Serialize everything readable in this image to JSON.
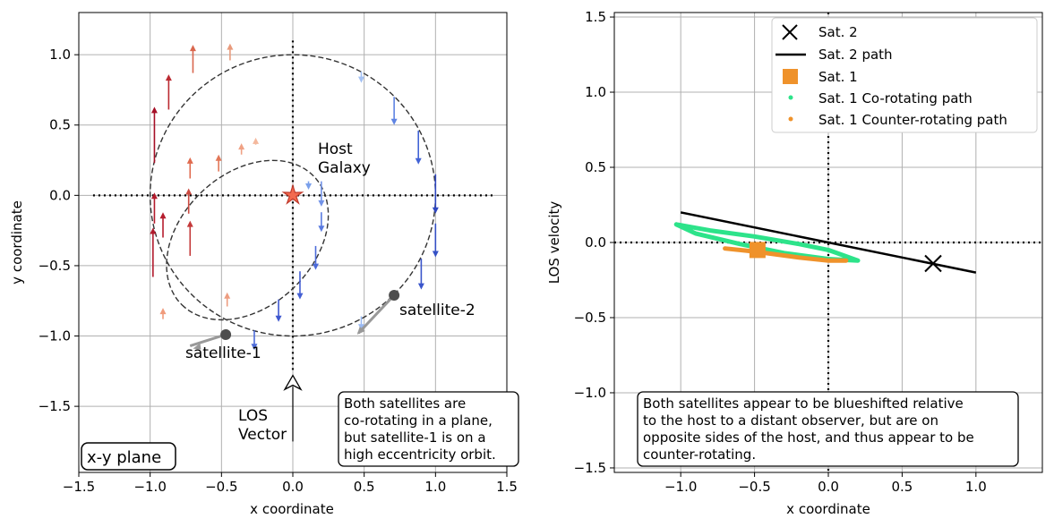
{
  "chart_data": [
    {
      "type": "line",
      "panel": "left",
      "title": "",
      "xlabel": "x coordinate",
      "ylabel": "y coordinate",
      "xlim": [
        -1.5,
        1.5
      ],
      "ylim": [
        -1.97,
        1.3
      ],
      "xticks": [
        -1.5,
        -1.0,
        -0.5,
        0.0,
        0.5,
        1.0,
        1.5
      ],
      "yticks": [
        -1.5,
        -1.0,
        -0.5,
        0.0,
        0.5,
        1.0
      ],
      "xtick_labels": [
        "−1.5",
        "−1.0",
        "−0.5",
        "0.0",
        "0.5",
        "1.0",
        "1.5"
      ],
      "ytick_labels": [
        "−1.5",
        "−1.0",
        "−0.5",
        "0.0",
        "0.5",
        "1.0"
      ],
      "grid": true,
      "panel_label": "x-y plane",
      "annotations": {
        "host_line1": "Host",
        "host_line2": "Galaxy",
        "sat1": "satellite-1",
        "sat2": "satellite-2",
        "los_line1": "LOS",
        "los_line2": "Vector",
        "box_lines": [
          "Both satellites are",
          "co-rotating in a plane,",
          "but satellite-1 is on a",
          "high eccentricity orbit."
        ]
      },
      "host_position": [
        0.0,
        0.0
      ],
      "orbits": [
        {
          "name": "Sat. 2 orbit",
          "center": [
            0.0,
            0.0
          ],
          "radius": 1.0
        },
        {
          "name": "Sat. 1 orbit",
          "focus": [
            0.0,
            0.0
          ],
          "pericenter": 0.2,
          "apocenter": 1.1,
          "apocenter_direction": [
            -0.7,
            -0.7
          ]
        }
      ],
      "satellites": [
        {
          "name": "satellite-1",
          "x": -0.47,
          "y": -0.99
        },
        {
          "name": "satellite-2",
          "x": 0.71,
          "y": -0.71
        }
      ],
      "velocity_arrows": [
        {
          "x": -0.44,
          "y": 0.96,
          "vy": 0.12,
          "color": "#e89a7c"
        },
        {
          "x": -0.7,
          "y": 0.87,
          "vy": 0.2,
          "color": "#d9674e"
        },
        {
          "x": -0.87,
          "y": 0.61,
          "vy": 0.25,
          "color": "#bb2a32"
        },
        {
          "x": -0.97,
          "y": 0.23,
          "vy": 0.4,
          "color": "#a50f26"
        },
        {
          "x": -0.97,
          "y": -0.2,
          "vy": 0.22,
          "color": "#b31b2c"
        },
        {
          "x": -0.98,
          "y": -0.58,
          "vy": 0.35,
          "color": "#b11a2c"
        },
        {
          "x": -0.91,
          "y": -0.88,
          "vy": 0.08,
          "color": "#f09b7c"
        },
        {
          "x": -0.72,
          "y": -0.43,
          "vy": 0.25,
          "color": "#c4393a"
        },
        {
          "x": -0.91,
          "y": -0.3,
          "vy": 0.18,
          "color": "#b51d2e"
        },
        {
          "x": -0.73,
          "y": -0.13,
          "vy": 0.18,
          "color": "#cb4a40"
        },
        {
          "x": -0.72,
          "y": 0.12,
          "vy": 0.15,
          "color": "#e06b4f"
        },
        {
          "x": -0.52,
          "y": 0.17,
          "vy": 0.12,
          "color": "#e27758"
        },
        {
          "x": -0.36,
          "y": 0.29,
          "vy": 0.08,
          "color": "#f0a184"
        },
        {
          "x": -0.26,
          "y": 0.36,
          "vy": 0.05,
          "color": "#f4b89d"
        },
        {
          "x": -0.46,
          "y": -0.79,
          "vy": 0.1,
          "color": "#ed9d80"
        },
        {
          "x": -0.27,
          "y": -0.96,
          "vy": -0.14,
          "color": "#4d6bd9"
        },
        {
          "x": -0.1,
          "y": -0.74,
          "vy": -0.16,
          "color": "#3f58cf"
        },
        {
          "x": 0.05,
          "y": -0.54,
          "vy": -0.2,
          "color": "#445fd3"
        },
        {
          "x": 0.16,
          "y": -0.36,
          "vy": -0.17,
          "color": "#4d6bd9"
        },
        {
          "x": 0.2,
          "y": -0.12,
          "vy": -0.14,
          "color": "#5a7be0"
        },
        {
          "x": 0.2,
          "y": 0.1,
          "vy": -0.18,
          "color": "#7293e8"
        },
        {
          "x": 0.11,
          "y": 0.1,
          "vy": -0.06,
          "color": "#7aa0eb"
        },
        {
          "x": 0.48,
          "y": 0.88,
          "vy": -0.08,
          "color": "#a3c1f4"
        },
        {
          "x": 0.71,
          "y": 0.7,
          "vy": -0.2,
          "color": "#5f84e2"
        },
        {
          "x": 0.88,
          "y": 0.46,
          "vy": -0.24,
          "color": "#4263d6"
        },
        {
          "x": 1.0,
          "y": 0.15,
          "vy": -0.28,
          "color": "#2f47c0"
        },
        {
          "x": 1.0,
          "y": -0.2,
          "vy": -0.24,
          "color": "#3450c5"
        },
        {
          "x": 0.9,
          "y": -0.45,
          "vy": -0.22,
          "color": "#3a55cb"
        },
        {
          "x": 0.48,
          "y": -0.86,
          "vy": -0.1,
          "color": "#9ab9f2"
        }
      ]
    },
    {
      "type": "line",
      "panel": "right",
      "title": "",
      "xlabel": "x coordinate",
      "ylabel": "LOS velocity",
      "xlim": [
        -1.45,
        1.45
      ],
      "ylim": [
        -1.53,
        1.53
      ],
      "xticks": [
        -1.0,
        -0.5,
        0.0,
        0.5,
        1.0
      ],
      "yticks": [
        -1.5,
        -1.0,
        -0.5,
        0.0,
        0.5,
        1.0,
        1.5
      ],
      "xtick_labels": [
        "−1.0",
        "−0.5",
        "0.0",
        "0.5",
        "1.0"
      ],
      "ytick_labels": [
        "−1.5",
        "−1.0",
        "−0.5",
        "0.0",
        "0.5",
        "1.0",
        "1.5"
      ],
      "grid": true,
      "annotations": {
        "box_lines": [
          "Both satellites appear to be blueshifted relative",
          "to the host to a distant observer, but are on",
          "opposite sides of the host, and thus appear to be",
          "counter-rotating."
        ]
      },
      "legend": {
        "placement": "top-right",
        "entries": [
          {
            "label": "Sat. 2",
            "marker": "x",
            "color": "#000000"
          },
          {
            "label": "Sat. 2 path",
            "marker": "line",
            "color": "#000000"
          },
          {
            "label": "Sat. 1",
            "marker": "square",
            "color": "#ef922b"
          },
          {
            "label": "Sat. 1 Co-rotating path",
            "marker": "dot",
            "color": "#2de38a"
          },
          {
            "label": "Sat. 1 Counter-rotating path",
            "marker": "dot",
            "color": "#ef922b"
          }
        ]
      },
      "series": [
        {
          "name": "Sat. 2 path",
          "x": [
            -1.0,
            1.0
          ],
          "y": [
            0.2,
            -0.2
          ],
          "color": "#000000"
        },
        {
          "name": "Sat. 1 Co-rotating path",
          "color": "#2de38a",
          "x": [
            -1.03,
            -0.8,
            -0.5,
            -0.2,
            0.0,
            0.2,
            0.0,
            -0.3,
            -0.6,
            -0.9,
            -1.03
          ],
          "y": [
            0.12,
            0.08,
            0.04,
            -0.01,
            -0.05,
            -0.12,
            -0.11,
            -0.07,
            -0.01,
            0.06,
            0.12
          ]
        },
        {
          "name": "Sat. 1 Counter-rotating path",
          "color": "#ef922b",
          "x": [
            -0.7,
            -0.5,
            -0.2,
            0.0,
            0.12
          ],
          "y": [
            -0.04,
            -0.06,
            -0.1,
            -0.12,
            -0.12
          ]
        },
        {
          "name": "Sat. 2",
          "x": [
            0.71
          ],
          "y": [
            -0.14
          ],
          "color": "#000000",
          "marker": "x"
        },
        {
          "name": "Sat. 1",
          "x": [
            -0.48
          ],
          "y": [
            -0.05
          ],
          "color": "#ef922b",
          "marker": "square"
        }
      ]
    }
  ]
}
